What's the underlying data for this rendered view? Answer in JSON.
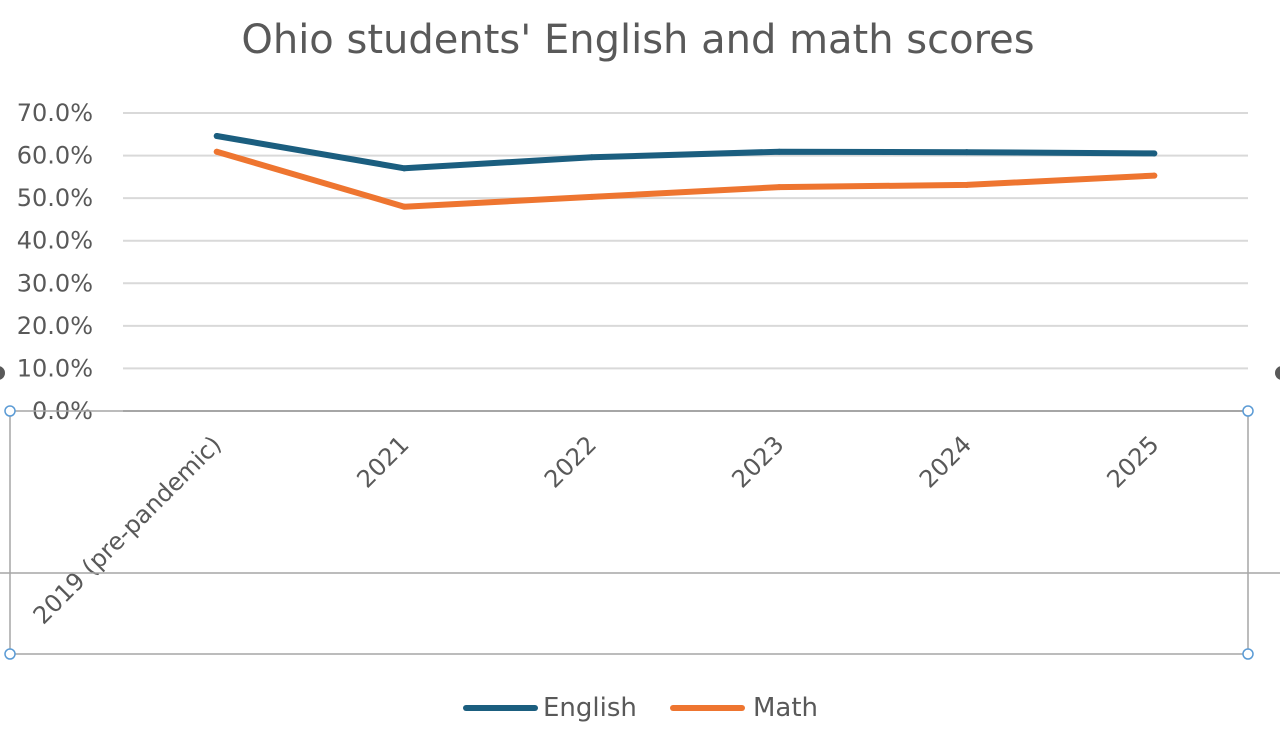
{
  "chart_data": {
    "type": "line",
    "title": "Ohio students' English and math scores",
    "categories": [
      "2019 (pre-pandemic)",
      "2021",
      "2022",
      "2023",
      "2024",
      "2025"
    ],
    "series": [
      {
        "name": "English",
        "color": "#1b5e7f",
        "values": [
          64.6,
          57.0,
          59.6,
          60.9,
          60.8,
          60.5
        ]
      },
      {
        "name": "Math",
        "color": "#ee7530",
        "values": [
          60.9,
          48.0,
          50.3,
          52.6,
          53.1,
          55.3
        ]
      }
    ],
    "y_ticks": [
      "0.0%",
      "10.0%",
      "20.0%",
      "30.0%",
      "40.0%",
      "50.0%",
      "60.0%",
      "70.0%"
    ],
    "ylim": [
      0,
      70
    ],
    "grid": true,
    "legend_position": "bottom"
  }
}
